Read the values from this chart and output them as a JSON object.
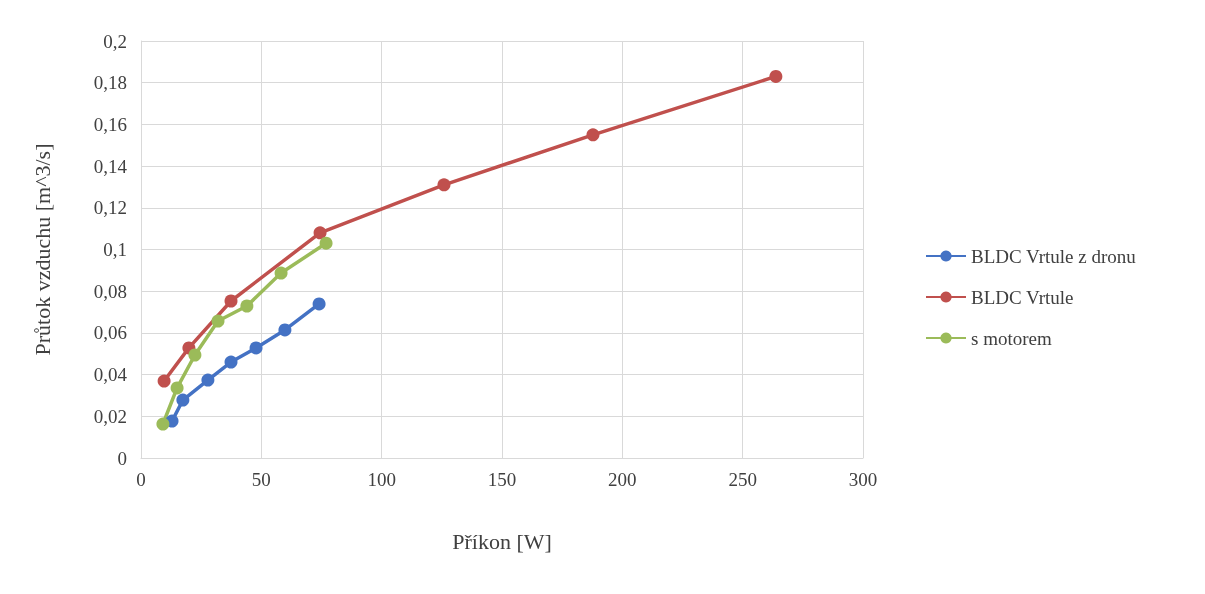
{
  "chart_data": {
    "type": "line",
    "xlabel": "Příkon [W]",
    "ylabel": "Průtok vzduchu [m^3/s]",
    "xlim": [
      0,
      300
    ],
    "xticks": [
      0,
      50,
      100,
      150,
      200,
      250,
      300
    ],
    "ylim": [
      0,
      0.2
    ],
    "yticks": [
      {
        "value": 0,
        "label": "0"
      },
      {
        "value": 0.02,
        "label": "0,02"
      },
      {
        "value": 0.04,
        "label": "0,04"
      },
      {
        "value": 0.06,
        "label": "0,06"
      },
      {
        "value": 0.08,
        "label": "0,08"
      },
      {
        "value": 0.1,
        "label": "0,1"
      },
      {
        "value": 0.12,
        "label": "0,12"
      },
      {
        "value": 0.14,
        "label": "0,14"
      },
      {
        "value": 0.16,
        "label": "0,16"
      },
      {
        "value": 0.18,
        "label": "0,18"
      },
      {
        "value": 0.2,
        "label": "0,2"
      }
    ],
    "grid": true,
    "legend": "right",
    "marker": "circle",
    "line_style": "solid",
    "series": [
      {
        "name": "BLDC Vrtule z dronu",
        "color": "#4472c4",
        "x": [
          12.9,
          17.4,
          27.8,
          37.4,
          47.8,
          59.8,
          74
        ],
        "values": [
          0.0177,
          0.0278,
          0.0374,
          0.046,
          0.0528,
          0.0614,
          0.0739
        ]
      },
      {
        "name": "BLDC Vrtule",
        "color": "#c0504d",
        "x": [
          9.6,
          19.9,
          37.4,
          74.4,
          125.9,
          187.8,
          263.8
        ],
        "values": [
          0.0369,
          0.0528,
          0.0753,
          0.108,
          0.131,
          0.155,
          0.183
        ]
      },
      {
        "name": "s motorem",
        "color": "#9bbb59",
        "x": [
          9.1,
          15,
          22.4,
          32,
          44,
          58.2,
          76.9
        ],
        "values": [
          0.0163,
          0.0336,
          0.0494,
          0.0657,
          0.0729,
          0.0887,
          0.103
        ]
      }
    ]
  }
}
